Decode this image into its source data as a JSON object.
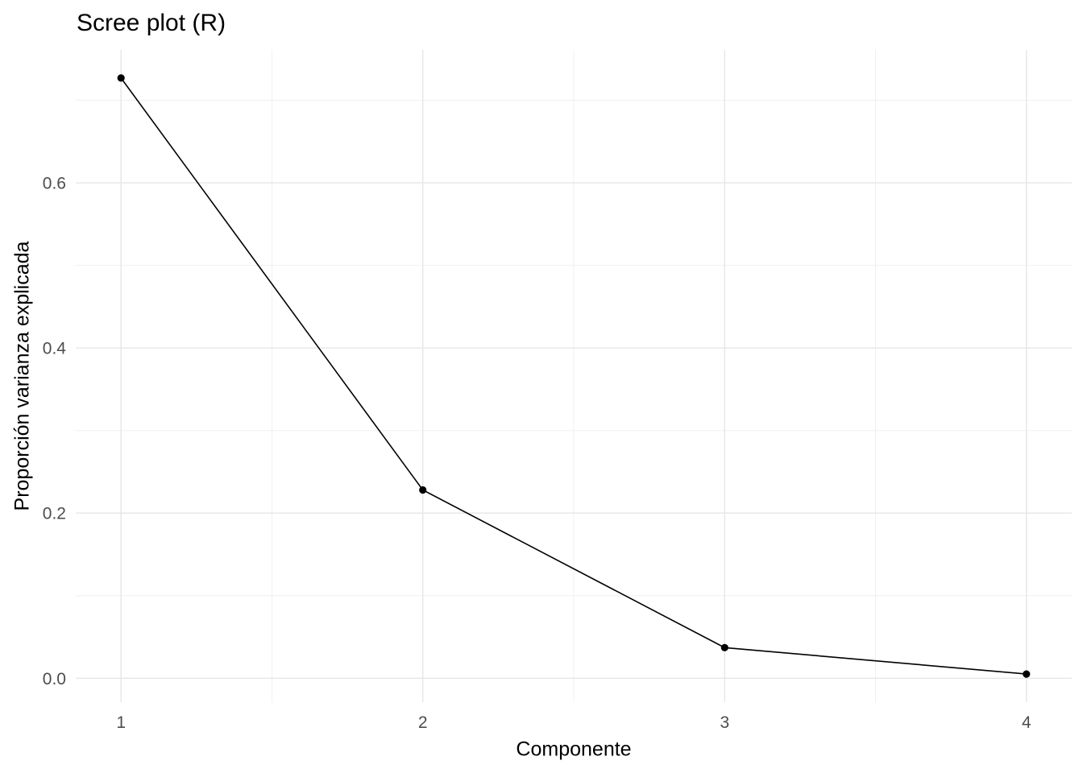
{
  "title": "Scree plot (R)",
  "chart_data": {
    "type": "line",
    "title": "Scree plot (R)",
    "xlabel": "Componente",
    "ylabel": "Proporción varianza explicada",
    "x": [
      1,
      2,
      3,
      4
    ],
    "values": [
      0.727,
      0.228,
      0.037,
      0.005
    ],
    "series": [
      {
        "name": "Proporción varianza explicada",
        "values": [
          0.727,
          0.228,
          0.037,
          0.005
        ]
      }
    ],
    "xlim": [
      0.85,
      4.15
    ],
    "ylim": [
      -0.029,
      0.761
    ],
    "x_ticks": [
      1,
      2,
      3,
      4
    ],
    "x_tick_labels": [
      "1",
      "2",
      "3",
      "4"
    ],
    "y_ticks": [
      0.0,
      0.2,
      0.4,
      0.6
    ],
    "y_tick_labels": [
      "0.0",
      "0.2",
      "0.4",
      "0.6"
    ],
    "x_minor_ticks": [
      1.5,
      2.5,
      3.5
    ],
    "y_minor_ticks": [
      0.1,
      0.3,
      0.5,
      0.7
    ],
    "grid": true,
    "legend_position": "none",
    "marker": "circle",
    "colors": {
      "line": "#000000",
      "point": "#000000",
      "grid_major": "#E6E6E6",
      "grid_minor": "#F0F0F0",
      "tick_label": "#4D4D4D",
      "text": "#000000",
      "background": "#FFFFFF"
    }
  }
}
